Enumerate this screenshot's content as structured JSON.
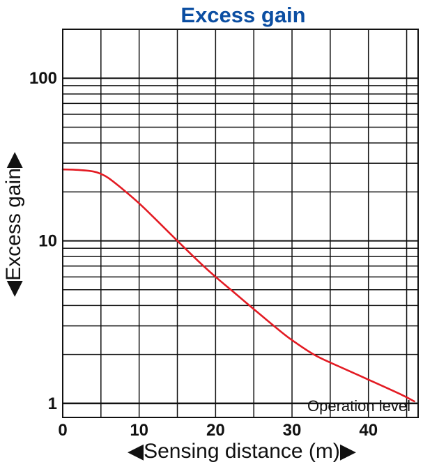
{
  "chart_data": {
    "type": "line",
    "title": "Excess gain",
    "xlabel": "◀Sensing distance (m)▶",
    "ylabel": "◀Excess gain▶",
    "x_tick_labels": [
      "0",
      "10",
      "20",
      "30",
      "40"
    ],
    "y_tick_labels": [
      "1",
      "10",
      "100"
    ],
    "annotation": "Operation level",
    "xlim": [
      0,
      46.5
    ],
    "ylim": [
      0.82,
      200
    ],
    "x_scale": "linear",
    "y_scale": "log",
    "grid": true,
    "legend": "none",
    "operation_level": 1,
    "series": [
      {
        "color": "#e31b23",
        "x": [
          0,
          2,
          4,
          5,
          6,
          8,
          10,
          12,
          15,
          18,
          20,
          22,
          25,
          28,
          30,
          33,
          36,
          40,
          44,
          46
        ],
        "y": [
          27.5,
          27.3,
          26.7,
          25.8,
          24.3,
          20.5,
          17,
          13.8,
          10,
          7.3,
          6,
          5,
          3.8,
          2.9,
          2.45,
          1.98,
          1.7,
          1.4,
          1.15,
          1.03
        ]
      }
    ]
  }
}
